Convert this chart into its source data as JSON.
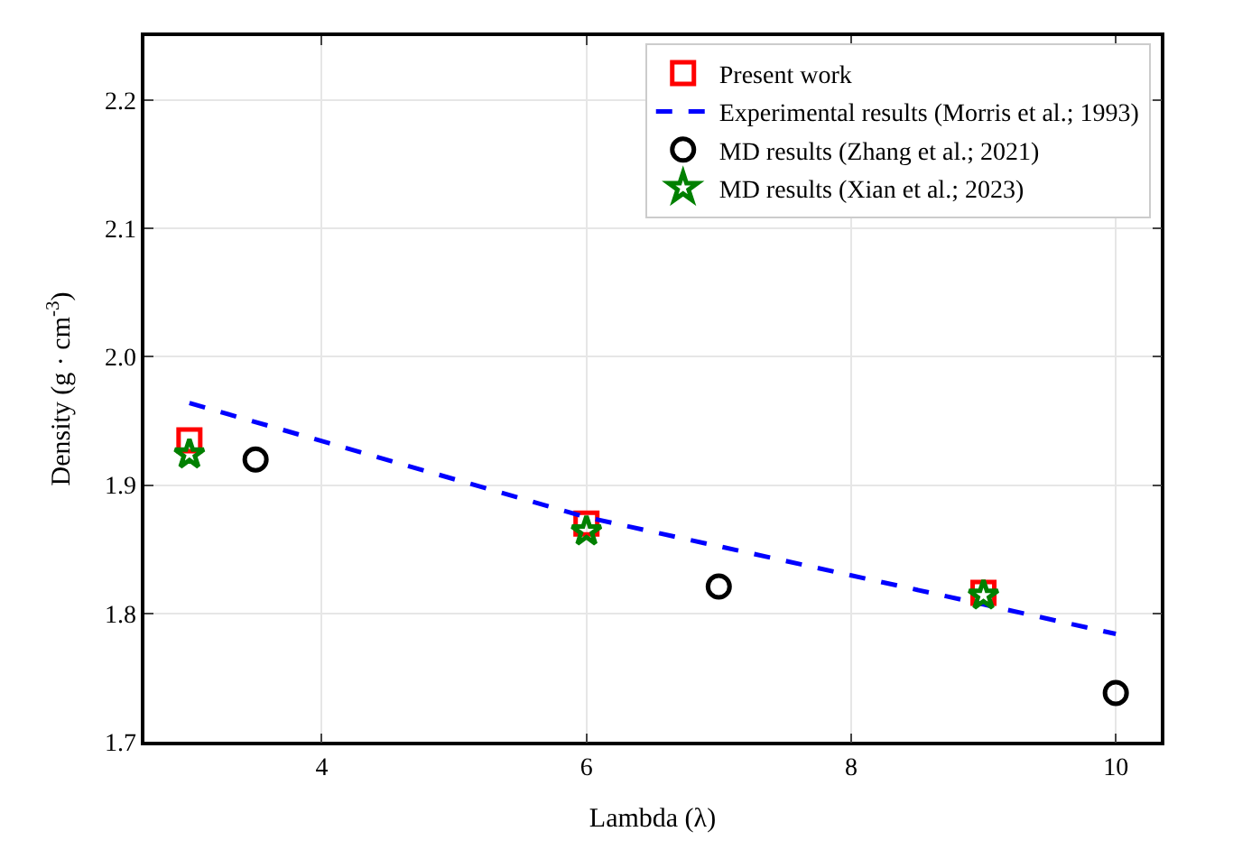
{
  "chart_data": {
    "type": "scatter",
    "xlabel": "Lambda (λ)",
    "ylabel": "Density (g · cm$^{-3}$)",
    "xlim": [
      2.66,
      10.34
    ],
    "ylim": [
      1.7,
      2.25
    ],
    "xticks": [
      4,
      6,
      8,
      10
    ],
    "yticks": [
      1.7,
      1.8,
      1.9,
      {
        "value": 2,
        "label": "2.0"
      },
      2.1,
      2.2
    ],
    "grid": true,
    "legend": "top right",
    "series": [
      {
        "name": "Present work",
        "marker": "square",
        "color": "#ff0000",
        "x": [
          3,
          6,
          9
        ],
        "values": [
          1.935,
          1.87,
          1.816
        ]
      },
      {
        "name": "Experimental results (Morris et al.; 1993)",
        "type": "line",
        "line_style": "dashed",
        "marker": "none",
        "color": "#0000ff",
        "x": [
          3,
          6,
          9,
          10
        ],
        "values": [
          1.964,
          1.875,
          1.807,
          1.784
        ]
      },
      {
        "name": "MD results (Zhang et al.; 2021)",
        "marker": "circle",
        "color": "#000000",
        "x": [
          3.5,
          7,
          10
        ],
        "values": [
          1.92,
          1.821,
          1.738
        ]
      },
      {
        "name": "MD results (Xian et al.; 2023)",
        "marker": "star",
        "color": "#008000",
        "x": [
          3,
          6,
          9
        ],
        "values": [
          1.924,
          1.864,
          1.814
        ]
      }
    ]
  }
}
